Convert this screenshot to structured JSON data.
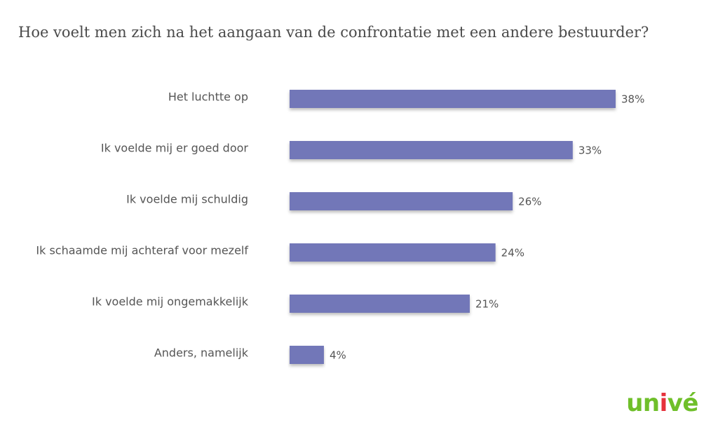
{
  "chart_data": {
    "type": "bar",
    "orientation": "horizontal",
    "title": "Hoe voelt men zich na het aangaan van de confrontatie met een andere bestuurder?",
    "categories": [
      "Het luchtte op",
      "Ik voelde mij er goed door",
      "Ik voelde mij schuldig",
      "Ik schaamde mij achteraf voor mezelf",
      "Ik voelde mij ongemakkelijk",
      "Anders, namelijk"
    ],
    "values": [
      38,
      33,
      26,
      24,
      21,
      4
    ],
    "value_labels": [
      "38%",
      "33%",
      "26%",
      "24%",
      "21%",
      "4%"
    ],
    "unit": "%",
    "xlim": [
      0,
      38
    ],
    "grid": false,
    "legend": "none",
    "bar_color": "#7277b8"
  },
  "brand": {
    "logo_text": "univé",
    "colors": {
      "green": "#6fbf2a",
      "red": "#e6323c"
    }
  }
}
